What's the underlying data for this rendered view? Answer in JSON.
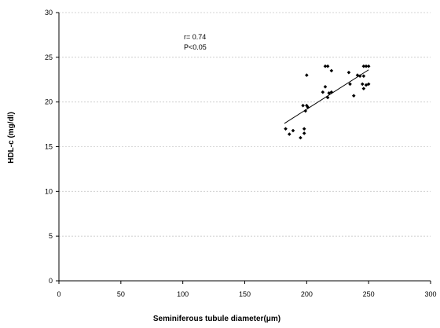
{
  "chart_data": {
    "type": "scatter",
    "xlabel": "Seminiferous tubule diameter(μm)",
    "ylabel": "HDL-c (mg/dl)",
    "xlim": [
      0,
      300
    ],
    "ylim": [
      0,
      30
    ],
    "x_ticks": [
      0,
      50,
      100,
      150,
      200,
      250,
      300
    ],
    "y_ticks": [
      0,
      5,
      10,
      15,
      20,
      25,
      30
    ],
    "grid": "horizontal dashed",
    "annotations": [
      "r= 0.74",
      "P<0.05"
    ],
    "points": [
      {
        "x": 183,
        "y": 17.0
      },
      {
        "x": 186,
        "y": 16.4
      },
      {
        "x": 189,
        "y": 16.8
      },
      {
        "x": 195,
        "y": 16.0
      },
      {
        "x": 197,
        "y": 19.6
      },
      {
        "x": 198,
        "y": 17.0
      },
      {
        "x": 198,
        "y": 16.5
      },
      {
        "x": 199,
        "y": 19.0
      },
      {
        "x": 200,
        "y": 19.6
      },
      {
        "x": 200,
        "y": 23.0
      },
      {
        "x": 201,
        "y": 19.4
      },
      {
        "x": 213,
        "y": 21.1
      },
      {
        "x": 215,
        "y": 21.7
      },
      {
        "x": 215,
        "y": 24.0
      },
      {
        "x": 217,
        "y": 24.0
      },
      {
        "x": 217,
        "y": 20.5
      },
      {
        "x": 218,
        "y": 21.0
      },
      {
        "x": 220,
        "y": 21.1
      },
      {
        "x": 220,
        "y": 23.5
      },
      {
        "x": 234,
        "y": 23.3
      },
      {
        "x": 235,
        "y": 22.0
      },
      {
        "x": 238,
        "y": 20.7
      },
      {
        "x": 241,
        "y": 23.0
      },
      {
        "x": 243,
        "y": 22.9
      },
      {
        "x": 245,
        "y": 22.0
      },
      {
        "x": 246,
        "y": 22.9
      },
      {
        "x": 246,
        "y": 24.0
      },
      {
        "x": 246,
        "y": 21.5
      },
      {
        "x": 248,
        "y": 24.0
      },
      {
        "x": 248,
        "y": 21.9
      },
      {
        "x": 250,
        "y": 22.0
      },
      {
        "x": 250,
        "y": 24.0
      }
    ],
    "trendline": {
      "x": [
        182,
        250
      ],
      "y": [
        17.6,
        23.6
      ]
    },
    "colors": {
      "marker": "#000000",
      "grid": "#c8c8c8",
      "axis": "#000000"
    }
  }
}
